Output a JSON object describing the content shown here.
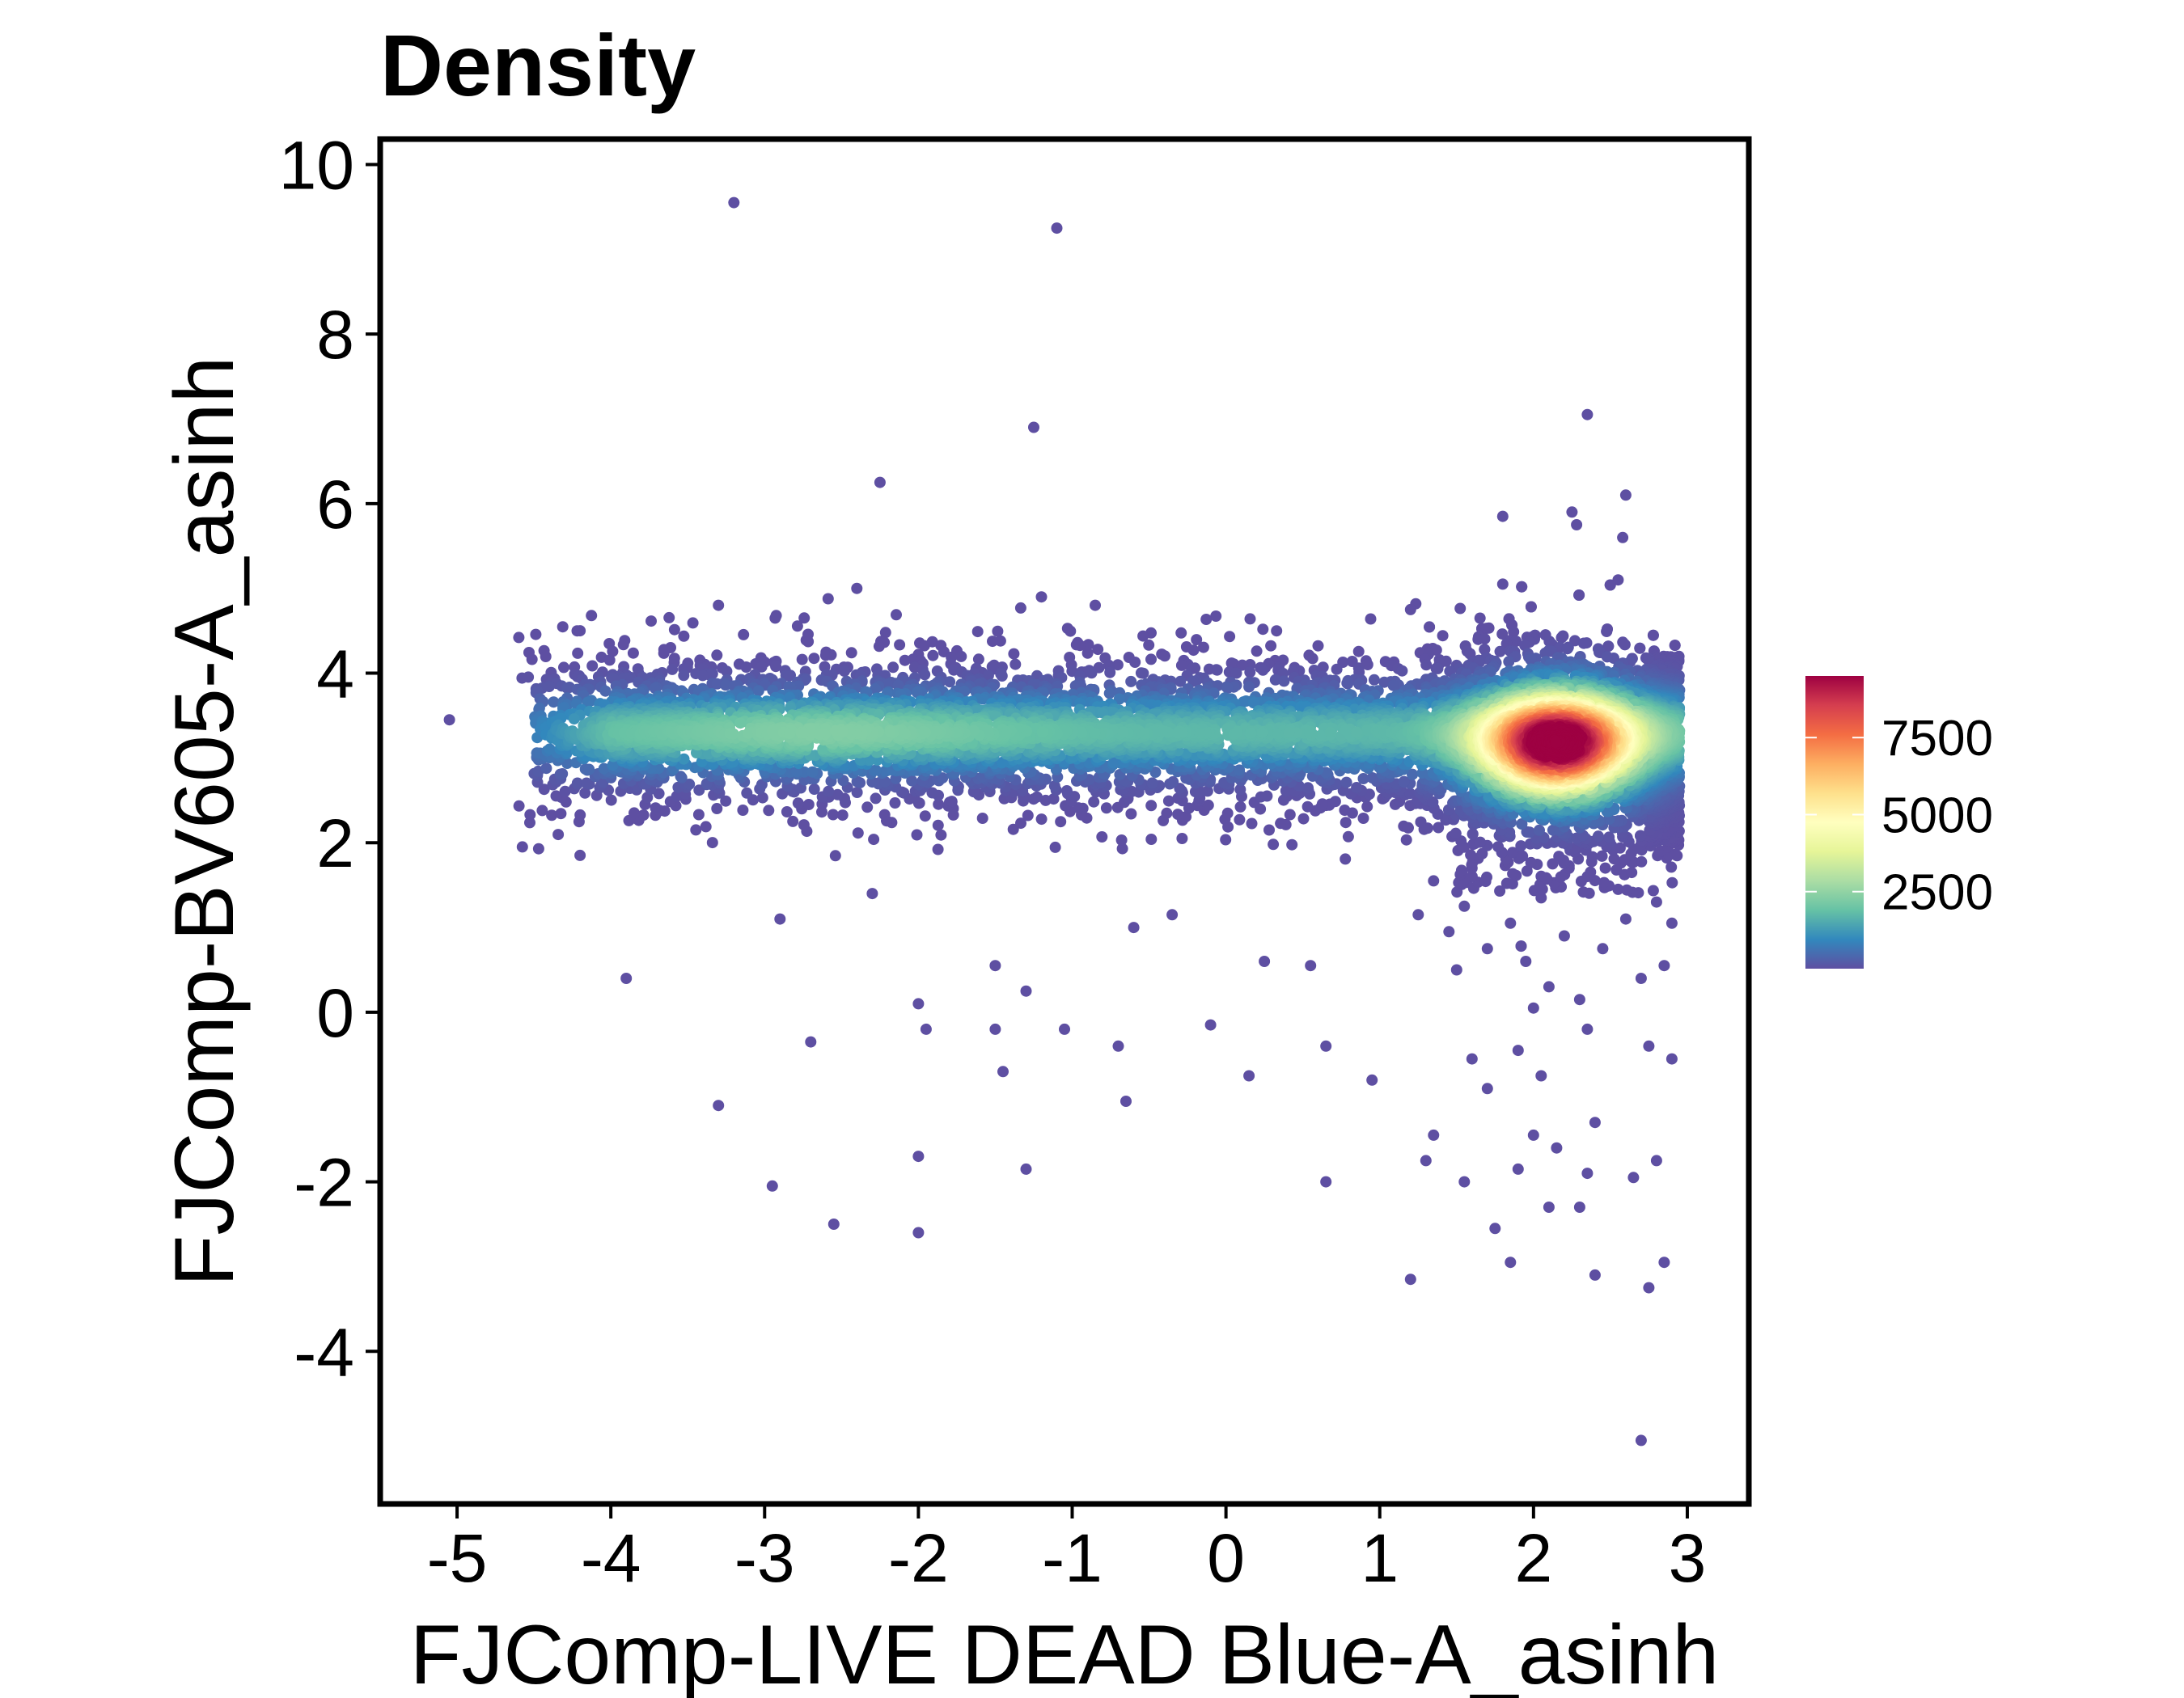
{
  "chart_data": {
    "type": "scatter",
    "title": "Density",
    "xlabel": "FJComp-LIVE DEAD Blue-A_asinh",
    "ylabel": "FJComp-BV605-A_asinh",
    "xlim": [
      -5.5,
      3.4
    ],
    "ylim": [
      -5.8,
      10.3
    ],
    "x_ticks": [
      -5,
      -4,
      -3,
      -2,
      -1,
      0,
      1,
      2,
      3
    ],
    "x_tick_labels": [
      "-5",
      "-4",
      "-3",
      "-2",
      "-1",
      "0",
      "1",
      "2",
      "3"
    ],
    "y_ticks": [
      -4,
      -2,
      0,
      2,
      4,
      6,
      8,
      10
    ],
    "y_tick_labels": [
      "-4",
      "-2",
      "0",
      "2",
      "4",
      "6",
      "8",
      "10"
    ],
    "grid": false,
    "legend": {
      "title": "",
      "position": "right",
      "ticks": [
        2500,
        5000,
        7500
      ],
      "tick_labels": [
        "2500",
        "5000",
        "7500"
      ],
      "range": [
        0,
        9500
      ],
      "colors": [
        "#5E4FA2",
        "#3288BD",
        "#66C2A5",
        "#ABDDA4",
        "#E6F598",
        "#FFFFBF",
        "#FEE08B",
        "#FDAE61",
        "#F46D43",
        "#D53E4F",
        "#9E0142"
      ]
    },
    "populations": [
      {
        "name": "",
        "description": "live cells dense cluster",
        "center": [
          2.15,
          3.15
        ],
        "spread": [
          0.32,
          0.38
        ],
        "peak_density": 9200
      },
      {
        "name": "",
        "description": "horizontal band",
        "x_range": [
          -4.5,
          2.9
        ],
        "y_center": 3.3,
        "y_spread": 0.28,
        "peak_density": 2300
      }
    ],
    "outliers": [
      {
        "x": -3.2,
        "y": 9.55
      },
      {
        "x": -1.1,
        "y": 9.25
      },
      {
        "x": -1.25,
        "y": 6.9
      },
      {
        "x": 2.35,
        "y": 7.05
      },
      {
        "x": -2.25,
        "y": 6.25
      },
      {
        "x": 2.6,
        "y": 6.1
      },
      {
        "x": 1.8,
        "y": 5.85
      },
      {
        "x": 2.25,
        "y": 5.9
      },
      {
        "x": 2.28,
        "y": 5.75
      },
      {
        "x": 2.58,
        "y": 5.6
      },
      {
        "x": 1.8,
        "y": 5.05
      },
      {
        "x": 2.55,
        "y": 5.1
      },
      {
        "x": -2.4,
        "y": 5.0
      },
      {
        "x": -1.2,
        "y": 4.9
      },
      {
        "x": -3.3,
        "y": 4.8
      },
      {
        "x": -0.85,
        "y": 4.8
      },
      {
        "x": 1.2,
        "y": 4.75
      },
      {
        "x": -4.2,
        "y": 4.5
      },
      {
        "x": -5.05,
        "y": 3.45
      },
      {
        "x": -4.2,
        "y": 1.85
      },
      {
        "x": -3.9,
        "y": 0.4
      },
      {
        "x": -2.9,
        "y": 1.1
      },
      {
        "x": -2.3,
        "y": 1.4
      },
      {
        "x": -1.5,
        "y": 0.55
      },
      {
        "x": -2.0,
        "y": 0.1
      },
      {
        "x": -1.95,
        "y": -0.2
      },
      {
        "x": -1.5,
        "y": -0.2
      },
      {
        "x": -1.3,
        "y": 0.25
      },
      {
        "x": -1.05,
        "y": -0.2
      },
      {
        "x": -0.7,
        "y": -0.4
      },
      {
        "x": -0.35,
        "y": 1.15
      },
      {
        "x": -0.6,
        "y": 1.0
      },
      {
        "x": -0.1,
        "y": -0.15
      },
      {
        "x": 0.25,
        "y": 0.6
      },
      {
        "x": 0.55,
        "y": 0.55
      },
      {
        "x": 0.65,
        "y": -0.4
      },
      {
        "x": 0.15,
        "y": -0.75
      },
      {
        "x": 0.95,
        "y": -0.8
      },
      {
        "x": -1.45,
        "y": -0.7
      },
      {
        "x": -0.65,
        "y": -1.05
      },
      {
        "x": -2.7,
        "y": -0.35
      },
      {
        "x": -3.3,
        "y": -1.1
      },
      {
        "x": -2.95,
        "y": -2.05
      },
      {
        "x": -2.55,
        "y": -2.5
      },
      {
        "x": -2.0,
        "y": -1.7
      },
      {
        "x": -2.0,
        "y": -2.6
      },
      {
        "x": -1.3,
        "y": -1.85
      },
      {
        "x": 0.65,
        "y": -2.0
      },
      {
        "x": 1.2,
        "y": -3.15
      },
      {
        "x": 2.7,
        "y": -5.05
      },
      {
        "x": 2.75,
        "y": -3.25
      },
      {
        "x": 2.85,
        "y": -2.95
      },
      {
        "x": 2.4,
        "y": -3.1
      },
      {
        "x": 1.85,
        "y": -2.95
      },
      {
        "x": 1.75,
        "y": -2.55
      },
      {
        "x": 2.1,
        "y": -2.3
      },
      {
        "x": 2.3,
        "y": -2.3
      },
      {
        "x": 2.65,
        "y": -1.95
      },
      {
        "x": 2.8,
        "y": -1.75
      },
      {
        "x": 1.3,
        "y": -1.75
      },
      {
        "x": 1.55,
        "y": -2.0
      },
      {
        "x": 1.9,
        "y": -1.85
      },
      {
        "x": 2.15,
        "y": -1.6
      },
      {
        "x": 2.35,
        "y": -1.9
      },
      {
        "x": 1.35,
        "y": -1.45
      },
      {
        "x": 1.7,
        "y": -0.9
      },
      {
        "x": 2.0,
        "y": -1.45
      },
      {
        "x": 2.4,
        "y": -1.3
      },
      {
        "x": 2.75,
        "y": -0.4
      },
      {
        "x": 2.9,
        "y": -0.55
      },
      {
        "x": 1.6,
        "y": -0.55
      },
      {
        "x": 1.9,
        "y": -0.45
      },
      {
        "x": 2.05,
        "y": -0.75
      },
      {
        "x": 1.45,
        "y": 0.95
      },
      {
        "x": 1.5,
        "y": 0.5
      },
      {
        "x": 1.55,
        "y": 1.25
      },
      {
        "x": 1.7,
        "y": 0.75
      },
      {
        "x": 1.85,
        "y": 1.05
      },
      {
        "x": 1.95,
        "y": 0.6
      },
      {
        "x": 2.1,
        "y": 0.3
      },
      {
        "x": 2.2,
        "y": 0.9
      },
      {
        "x": 2.3,
        "y": 0.15
      },
      {
        "x": 2.45,
        "y": 0.75
      },
      {
        "x": 2.6,
        "y": 1.1
      },
      {
        "x": 2.7,
        "y": 0.4
      },
      {
        "x": 2.85,
        "y": 0.55
      },
      {
        "x": 2.9,
        "y": 1.05
      },
      {
        "x": 1.35,
        "y": 1.55
      },
      {
        "x": 1.6,
        "y": 1.7
      },
      {
        "x": 2.05,
        "y": 1.35
      },
      {
        "x": 2.35,
        "y": 1.6
      },
      {
        "x": 2.55,
        "y": 1.45
      },
      {
        "x": 2.8,
        "y": 1.3
      },
      {
        "x": 2.0,
        "y": 0.05
      },
      {
        "x": 2.35,
        "y": -0.2
      },
      {
        "x": 1.25,
        "y": 1.15
      }
    ]
  }
}
